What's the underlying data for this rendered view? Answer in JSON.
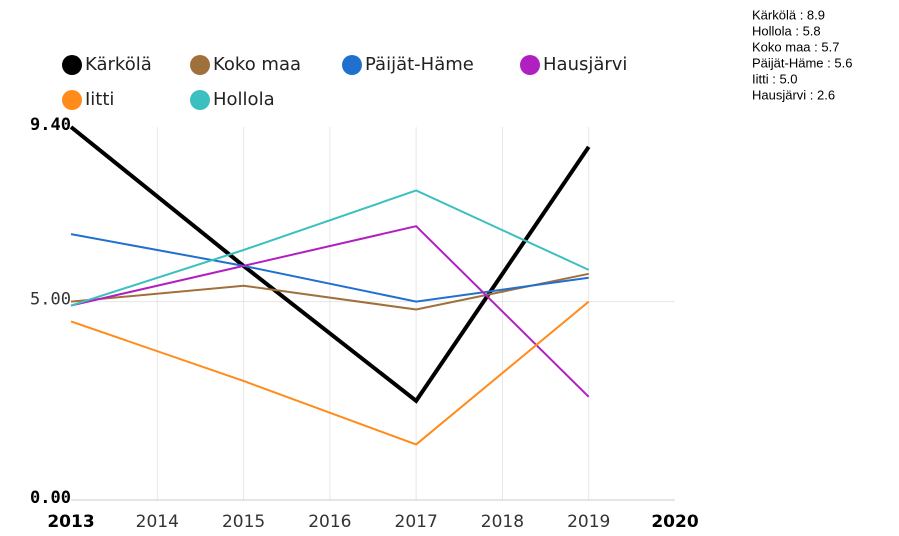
{
  "chart_data": {
    "type": "line",
    "x": [
      2013,
      2015,
      2017,
      2019
    ],
    "series": [
      {
        "name": "Kärkölä",
        "color": "#000000",
        "values": [
          9.4,
          5.9,
          2.5,
          8.9
        ]
      },
      {
        "name": "Koko maa",
        "color": "#a0703c",
        "values": [
          5.0,
          5.4,
          4.8,
          5.7
        ]
      },
      {
        "name": "Päijät-Häme",
        "color": "#2070d0",
        "values": [
          6.7,
          5.9,
          5.0,
          5.6
        ]
      },
      {
        "name": "Hausjärvi",
        "color": "#b020c0",
        "values": [
          4.9,
          5.9,
          6.9,
          2.6
        ]
      },
      {
        "name": "Iitti",
        "color": "#ff8c1a",
        "values": [
          4.5,
          3.0,
          1.4,
          5.0
        ]
      },
      {
        "name": "Hollola",
        "color": "#3cbfbf",
        "values": [
          4.9,
          6.3,
          7.8,
          5.8
        ]
      }
    ],
    "xlim": [
      2013,
      2020
    ],
    "xticks": [
      2013,
      2014,
      2015,
      2016,
      2017,
      2018,
      2019,
      2020
    ],
    "ylim": [
      0,
      9.4
    ],
    "yticks": [
      {
        "value": 0,
        "label": "0.00"
      },
      {
        "value": 5,
        "label": "5.00"
      },
      {
        "value": 9.4,
        "label": "9.40"
      }
    ],
    "grid": true,
    "annotations": [
      "Kärkölä : 8.9",
      "Hollola : 5.8",
      "Koko maa : 5.7",
      "Päijät-Häme : 5.6",
      "Iitti : 5.0",
      "Hausjärvi : 2.6"
    ]
  }
}
